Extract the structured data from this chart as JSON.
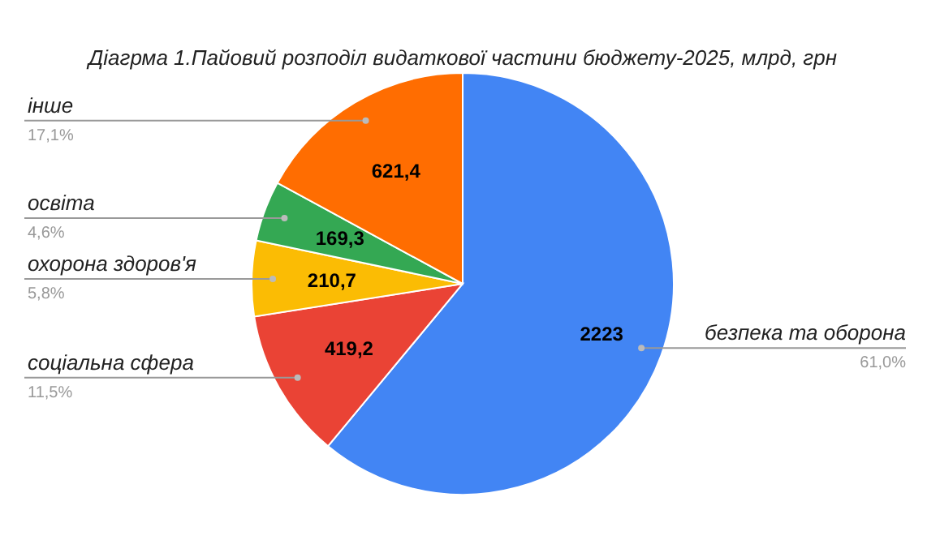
{
  "chart_data": {
    "type": "pie",
    "title": "Діагрма 1.Пайовий розподіл видаткової частини бюджету-2025, млрд, грн",
    "categories": [
      "безпека та оборона",
      "соціальна сфера",
      "охорона здоров'я",
      "освіта",
      "інше"
    ],
    "values": [
      2223,
      419.2,
      210.7,
      169.3,
      621.4
    ],
    "colors": [
      "#4285f4",
      "#ea4335",
      "#fbbc04",
      "#34a853",
      "#ff6d01"
    ],
    "value_labels": [
      "2223",
      "419,2",
      "210,7",
      "169,3",
      "621,4"
    ],
    "annotations": [
      {
        "text": "61,0%",
        "x": "безпека та оборона"
      },
      {
        "text": "11,5%",
        "x": "соціальна сфера"
      },
      {
        "text": "5,8%",
        "x": "охорона здоров'я"
      },
      {
        "text": "4,6%",
        "x": "освіта"
      },
      {
        "text": "17,1%",
        "x": "інше"
      }
    ]
  }
}
